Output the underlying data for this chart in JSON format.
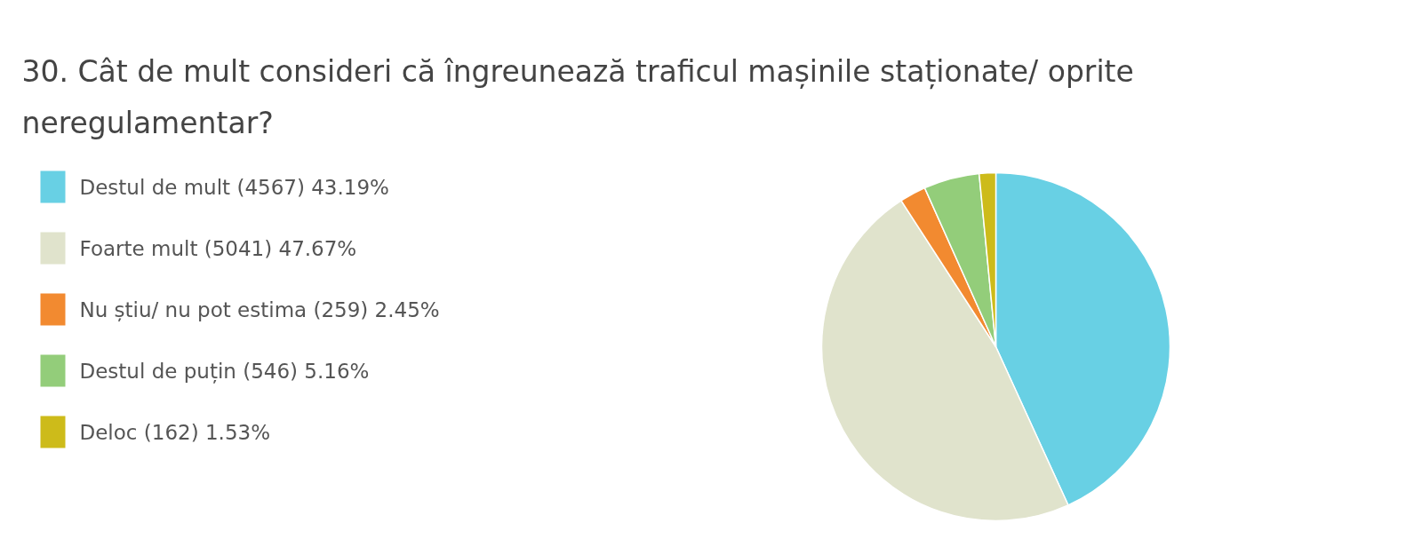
{
  "chart_data": {
    "type": "pie",
    "title": "30. Cât de mult consideri că îngreunează traficul mașinile staționate/ oprite neregulamentar?",
    "categories": [
      "Destul de mult (4567) 43.19%",
      "Foarte mult (5041) 47.67%",
      "Nu știu/ nu pot estima (259) 2.45%",
      "Destul de puțin (546) 5.16%",
      "Deloc (162) 1.53%"
    ],
    "values": [
      4567,
      5041,
      259,
      546,
      162
    ],
    "colors": [
      "#68d0e4",
      "#e0e3cc",
      "#f28a30",
      "#93cd7a",
      "#cdbb1a"
    ],
    "legend": "left"
  }
}
